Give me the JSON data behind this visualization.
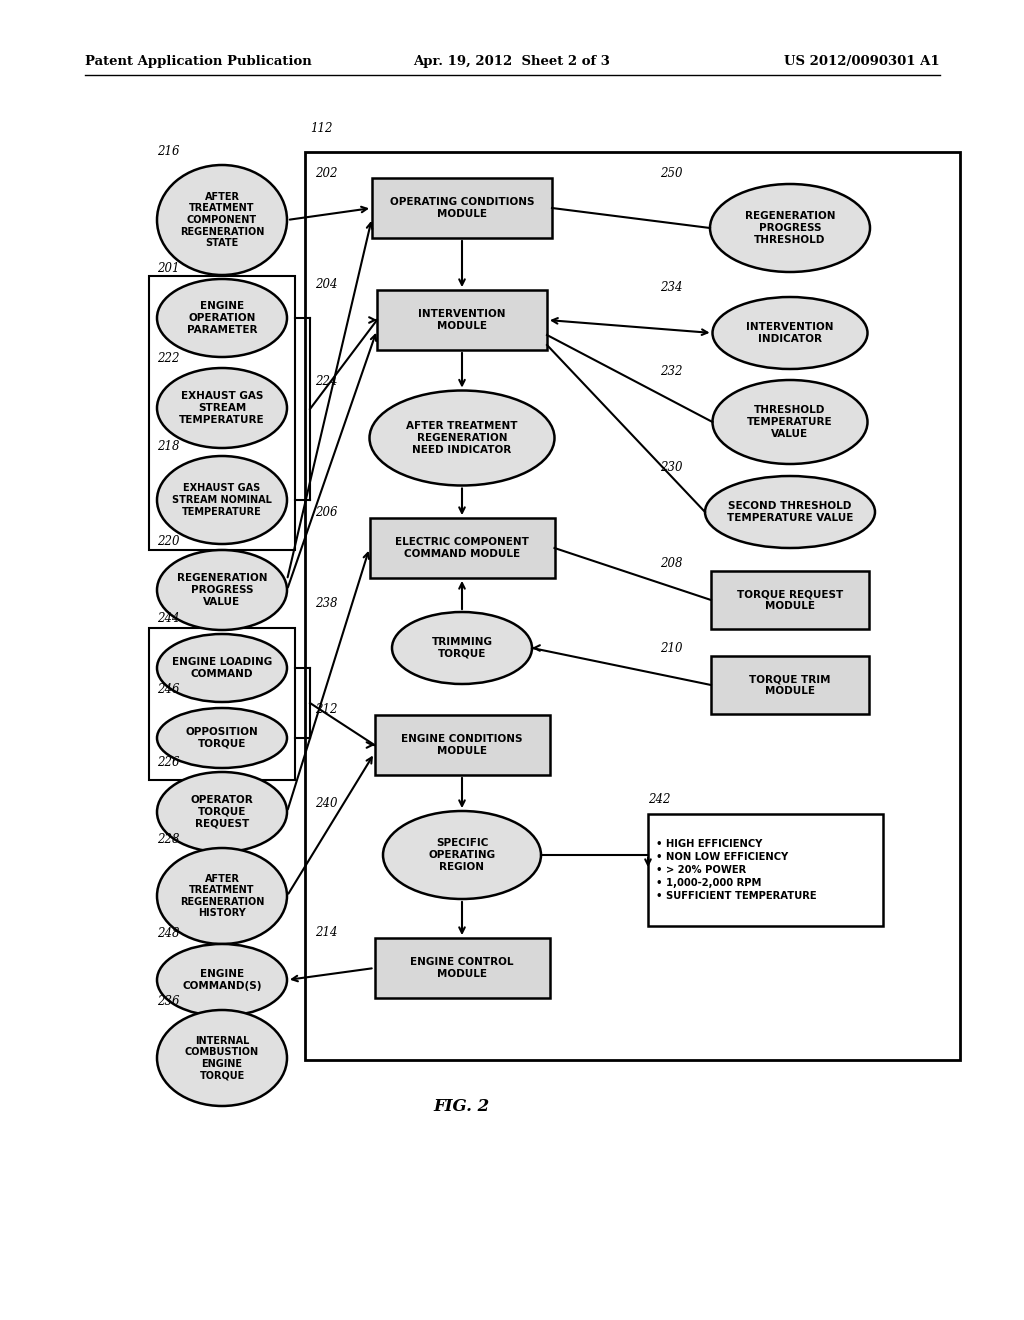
{
  "title_left": "Patent Application Publication",
  "title_center": "Apr. 19, 2012  Sheet 2 of 3",
  "title_right": "US 2012/0090301 A1",
  "fig_label": "FIG. 2",
  "bg_color": "#ffffff"
}
